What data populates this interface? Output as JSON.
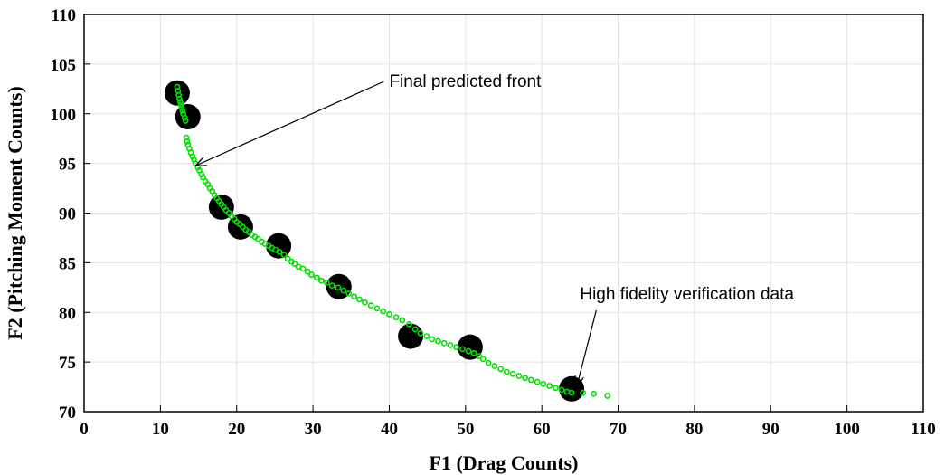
{
  "chart_data": {
    "type": "scatter",
    "xlabel": "F1 (Drag Counts)",
    "ylabel": "F2 (Pitching Moment Counts)",
    "xlim": [
      0,
      110
    ],
    "ylim": [
      70,
      110
    ],
    "xticks": [
      0,
      10,
      20,
      30,
      40,
      50,
      60,
      70,
      80,
      90,
      100,
      110
    ],
    "yticks": [
      70,
      75,
      80,
      85,
      90,
      95,
      100,
      105,
      110
    ],
    "grid": true,
    "colors": {
      "front": "#00e000",
      "verification": "#000000"
    },
    "series": [
      {
        "marker": "large-filled-circle",
        "values": [
          [
            12.2,
            102.1
          ],
          [
            13.6,
            99.7
          ],
          [
            18.0,
            90.6
          ],
          [
            20.5,
            88.6
          ],
          [
            25.5,
            86.7
          ],
          [
            33.4,
            82.6
          ],
          [
            42.8,
            77.6
          ],
          [
            50.6,
            76.5
          ],
          [
            63.9,
            72.3
          ]
        ]
      },
      {
        "marker": "small-open-circle",
        "values": [
          [
            12.2,
            102.7
          ],
          [
            12.3,
            102.3
          ],
          [
            12.4,
            101.9
          ],
          [
            12.5,
            101.5
          ],
          [
            12.6,
            101.2
          ],
          [
            12.7,
            100.9
          ],
          [
            12.8,
            100.6
          ],
          [
            12.9,
            100.3
          ],
          [
            13.0,
            100.0
          ],
          [
            13.2,
            99.6
          ],
          [
            13.3,
            99.3
          ],
          [
            13.4,
            97.6
          ],
          [
            13.5,
            97.2
          ],
          [
            13.6,
            96.9
          ],
          [
            13.8,
            96.5
          ],
          [
            14.0,
            96.1
          ],
          [
            14.2,
            95.7
          ],
          [
            14.4,
            95.4
          ],
          [
            14.6,
            95.0
          ],
          [
            14.9,
            94.6
          ],
          [
            15.1,
            94.3
          ],
          [
            15.4,
            93.9
          ],
          [
            15.6,
            93.6
          ],
          [
            15.9,
            93.2
          ],
          [
            16.2,
            92.9
          ],
          [
            16.5,
            92.5
          ],
          [
            16.8,
            92.2
          ],
          [
            17.1,
            91.8
          ],
          [
            17.4,
            91.5
          ],
          [
            17.7,
            91.2
          ],
          [
            18.0,
            90.9
          ],
          [
            18.3,
            90.6
          ],
          [
            18.6,
            90.3
          ],
          [
            19.0,
            90.0
          ],
          [
            19.3,
            89.7
          ],
          [
            19.7,
            89.4
          ],
          [
            20.0,
            89.1
          ],
          [
            20.4,
            88.9
          ],
          [
            20.8,
            88.6
          ],
          [
            21.2,
            88.3
          ],
          [
            21.6,
            88.1
          ],
          [
            22.0,
            87.8
          ],
          [
            22.4,
            87.6
          ],
          [
            22.8,
            87.4
          ],
          [
            23.3,
            87.1
          ],
          [
            23.7,
            86.9
          ],
          [
            24.2,
            86.7
          ],
          [
            24.6,
            86.5
          ],
          [
            25.1,
            86.3
          ],
          [
            25.6,
            86.1
          ],
          [
            26.2,
            85.8
          ],
          [
            26.7,
            85.4
          ],
          [
            27.2,
            85.1
          ],
          [
            27.6,
            84.9
          ],
          [
            28.1,
            84.6
          ],
          [
            28.7,
            84.4
          ],
          [
            29.3,
            84.1
          ],
          [
            29.8,
            83.8
          ],
          [
            30.5,
            83.5
          ],
          [
            31.1,
            83.2
          ],
          [
            31.8,
            83.0
          ],
          [
            32.5,
            82.7
          ],
          [
            33.3,
            82.5
          ],
          [
            34.0,
            82.2
          ],
          [
            34.7,
            81.9
          ],
          [
            35.4,
            81.6
          ],
          [
            36.1,
            81.3
          ],
          [
            36.8,
            81.0
          ],
          [
            37.6,
            80.7
          ],
          [
            38.4,
            80.4
          ],
          [
            39.2,
            80.1
          ],
          [
            40.0,
            79.8
          ],
          [
            40.9,
            79.5
          ],
          [
            41.7,
            79.2
          ],
          [
            42.6,
            78.8
          ],
          [
            43.4,
            78.3
          ],
          [
            44.1,
            77.9
          ],
          [
            44.9,
            77.6
          ],
          [
            45.6,
            77.3
          ],
          [
            46.4,
            77.1
          ],
          [
            47.2,
            76.9
          ],
          [
            48.0,
            76.7
          ],
          [
            48.8,
            76.5
          ],
          [
            49.6,
            76.3
          ],
          [
            50.4,
            76.1
          ],
          [
            51.1,
            75.9
          ],
          [
            51.8,
            75.6
          ],
          [
            52.3,
            75.3
          ],
          [
            53.0,
            74.9
          ],
          [
            53.8,
            74.6
          ],
          [
            54.6,
            74.3
          ],
          [
            55.4,
            74.0
          ],
          [
            56.2,
            73.8
          ],
          [
            57.0,
            73.6
          ],
          [
            57.8,
            73.4
          ],
          [
            58.6,
            73.2
          ],
          [
            59.4,
            73.0
          ],
          [
            60.2,
            72.8
          ],
          [
            61.0,
            72.6
          ],
          [
            61.8,
            72.4
          ],
          [
            62.6,
            72.2
          ],
          [
            63.3,
            72.0
          ],
          [
            63.9,
            71.9
          ],
          [
            65.4,
            71.9
          ],
          [
            66.8,
            71.8
          ],
          [
            68.6,
            71.6
          ]
        ]
      }
    ],
    "annotations": [
      {
        "text": "Final predicted front",
        "point": [
          14.7,
          94.8
        ],
        "text_pos": [
          40.0,
          102.7
        ]
      },
      {
        "text": "High fidelity verification data",
        "point": [
          64.6,
          72.6
        ],
        "text_pos": [
          65.0,
          81.3
        ]
      }
    ]
  }
}
